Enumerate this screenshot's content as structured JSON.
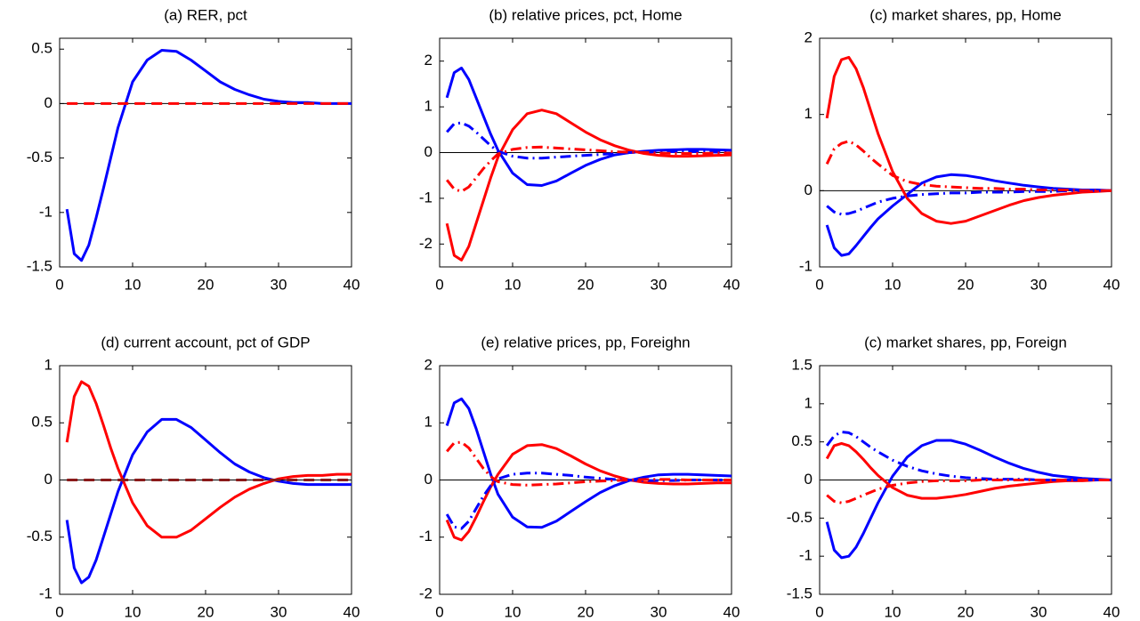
{
  "chart_data": [
    {
      "type": "line",
      "title": "(a) RER, pct",
      "zero_line": true,
      "x": [
        1,
        2,
        3,
        4,
        5,
        6,
        7,
        8,
        10,
        12,
        14,
        16,
        18,
        20,
        22,
        24,
        26,
        28,
        30,
        32,
        34,
        36,
        38,
        40
      ],
      "xlim": [
        0,
        40
      ],
      "xticks": [
        0,
        10,
        20,
        30,
        40
      ],
      "ylim": [
        -1.5,
        0.6
      ],
      "yticks": [
        -1.5,
        -1,
        -0.5,
        0,
        0.5
      ],
      "series": [
        {
          "color": "#0000ff",
          "style": "solid",
          "values": [
            -0.97,
            -1.38,
            -1.44,
            -1.3,
            -1.05,
            -0.78,
            -0.5,
            -0.22,
            0.2,
            0.4,
            0.49,
            0.48,
            0.4,
            0.3,
            0.2,
            0.13,
            0.08,
            0.04,
            0.02,
            0.01,
            0.01,
            0,
            0,
            0
          ]
        },
        {
          "color": "#ff0000",
          "style": "dashed",
          "values": [
            0,
            0,
            0,
            0,
            0,
            0,
            0,
            0,
            0,
            0,
            0,
            0,
            0,
            0,
            0,
            0,
            0,
            0,
            0,
            0,
            0,
            0,
            0,
            0
          ]
        }
      ]
    },
    {
      "type": "line",
      "title": "(b) relative prices, pct, Home",
      "zero_line": true,
      "x": [
        1,
        2,
        3,
        4,
        5,
        6,
        7,
        8,
        10,
        12,
        14,
        16,
        18,
        20,
        22,
        24,
        26,
        28,
        30,
        32,
        34,
        36,
        38,
        40
      ],
      "xlim": [
        0,
        40
      ],
      "xticks": [
        0,
        10,
        20,
        30,
        40
      ],
      "ylim": [
        -2.5,
        2.5
      ],
      "yticks": [
        -2,
        -1,
        0,
        1,
        2
      ],
      "series": [
        {
          "color": "#0000ff",
          "style": "solid",
          "values": [
            1.2,
            1.75,
            1.85,
            1.6,
            1.2,
            0.8,
            0.4,
            0.05,
            -0.45,
            -0.7,
            -0.72,
            -0.62,
            -0.45,
            -0.28,
            -0.15,
            -0.05,
            0,
            0.03,
            0.05,
            0.06,
            0.07,
            0.07,
            0.06,
            0.05
          ]
        },
        {
          "color": "#ff0000",
          "style": "solid",
          "values": [
            -1.55,
            -2.25,
            -2.35,
            -2.05,
            -1.55,
            -1.05,
            -0.55,
            -0.1,
            0.5,
            0.85,
            0.93,
            0.85,
            0.65,
            0.45,
            0.28,
            0.15,
            0.05,
            -0.02,
            -0.06,
            -0.08,
            -0.08,
            -0.07,
            -0.06,
            -0.05
          ]
        },
        {
          "color": "#0000ff",
          "style": "dashdot",
          "values": [
            0.45,
            0.63,
            0.65,
            0.58,
            0.45,
            0.3,
            0.15,
            0.03,
            -0.08,
            -0.12,
            -0.12,
            -0.1,
            -0.08,
            -0.06,
            -0.04,
            -0.02,
            0,
            0.01,
            0.02,
            0.02,
            0.02,
            0.02,
            0.01,
            0.01
          ]
        },
        {
          "color": "#ff0000",
          "style": "dashdot",
          "values": [
            -0.6,
            -0.8,
            -0.85,
            -0.75,
            -0.55,
            -0.35,
            -0.18,
            -0.03,
            0.07,
            0.11,
            0.12,
            0.1,
            0.08,
            0.06,
            0.04,
            0.02,
            0.01,
            0,
            -0.01,
            -0.02,
            -0.02,
            -0.02,
            -0.01,
            -0.01
          ]
        }
      ]
    },
    {
      "type": "line",
      "title": "(c) market shares, pp, Home",
      "zero_line": true,
      "x": [
        1,
        2,
        3,
        4,
        5,
        6,
        7,
        8,
        10,
        12,
        14,
        16,
        18,
        20,
        22,
        24,
        26,
        28,
        30,
        32,
        34,
        36,
        38,
        40
      ],
      "xlim": [
        0,
        40
      ],
      "xticks": [
        0,
        10,
        20,
        30,
        40
      ],
      "ylim": [
        -1,
        2
      ],
      "yticks": [
        -1,
        0,
        1,
        2
      ],
      "series": [
        {
          "color": "#0000ff",
          "style": "solid",
          "values": [
            -0.45,
            -0.75,
            -0.85,
            -0.83,
            -0.72,
            -0.6,
            -0.48,
            -0.37,
            -0.2,
            -0.05,
            0.1,
            0.18,
            0.21,
            0.2,
            0.17,
            0.13,
            0.1,
            0.07,
            0.05,
            0.03,
            0.02,
            0.01,
            0.01,
            0
          ]
        },
        {
          "color": "#ff0000",
          "style": "solid",
          "values": [
            0.95,
            1.5,
            1.72,
            1.75,
            1.6,
            1.35,
            1.05,
            0.75,
            0.25,
            -0.1,
            -0.3,
            -0.4,
            -0.43,
            -0.4,
            -0.33,
            -0.26,
            -0.19,
            -0.13,
            -0.09,
            -0.06,
            -0.04,
            -0.02,
            -0.01,
            0
          ]
        },
        {
          "color": "#0000ff",
          "style": "dashdot",
          "values": [
            -0.2,
            -0.28,
            -0.31,
            -0.3,
            -0.27,
            -0.23,
            -0.19,
            -0.15,
            -0.1,
            -0.07,
            -0.05,
            -0.04,
            -0.03,
            -0.03,
            -0.02,
            -0.02,
            -0.02,
            -0.01,
            -0.01,
            -0.01,
            0,
            0,
            0,
            0
          ]
        },
        {
          "color": "#ff0000",
          "style": "dashdot",
          "values": [
            0.35,
            0.55,
            0.62,
            0.65,
            0.6,
            0.52,
            0.43,
            0.35,
            0.2,
            0.12,
            0.08,
            0.06,
            0.05,
            0.04,
            0.03,
            0.03,
            0.02,
            0.02,
            0.01,
            0.01,
            0.01,
            0,
            0,
            0
          ]
        }
      ]
    },
    {
      "type": "line",
      "title": "(d) current account, pct of GDP",
      "zero_line": true,
      "x": [
        1,
        2,
        3,
        4,
        5,
        6,
        7,
        8,
        10,
        12,
        14,
        16,
        18,
        20,
        22,
        24,
        26,
        28,
        30,
        32,
        34,
        36,
        38,
        40
      ],
      "xlim": [
        0,
        40
      ],
      "xticks": [
        0,
        10,
        20,
        30,
        40
      ],
      "ylim": [
        -1,
        1
      ],
      "yticks": [
        -1,
        -0.5,
        0,
        0.5,
        1
      ],
      "series": [
        {
          "color": "#0000ff",
          "style": "solid",
          "values": [
            -0.35,
            -0.77,
            -0.9,
            -0.85,
            -0.7,
            -0.5,
            -0.3,
            -0.1,
            0.22,
            0.42,
            0.53,
            0.53,
            0.46,
            0.35,
            0.24,
            0.14,
            0.07,
            0.02,
            -0.01,
            -0.03,
            -0.04,
            -0.04,
            -0.04,
            -0.04
          ]
        },
        {
          "color": "#ff0000",
          "style": "solid",
          "values": [
            0.33,
            0.73,
            0.86,
            0.82,
            0.67,
            0.48,
            0.28,
            0.1,
            -0.2,
            -0.4,
            -0.5,
            -0.5,
            -0.44,
            -0.34,
            -0.24,
            -0.15,
            -0.08,
            -0.03,
            0.01,
            0.03,
            0.04,
            0.04,
            0.05,
            0.05
          ]
        },
        {
          "color": "#8b1a1a",
          "style": "dashed",
          "values": [
            0,
            0,
            0,
            0,
            0,
            0,
            0,
            0,
            0,
            0,
            0,
            0,
            0,
            0,
            0,
            0,
            0,
            0,
            0,
            0,
            0,
            0,
            0,
            0
          ]
        }
      ]
    },
    {
      "type": "line",
      "title": "(e) relative prices, pp, Foreighn",
      "zero_line": true,
      "x": [
        1,
        2,
        3,
        4,
        5,
        6,
        7,
        8,
        10,
        12,
        14,
        16,
        18,
        20,
        22,
        24,
        26,
        28,
        30,
        32,
        34,
        36,
        38,
        40
      ],
      "xlim": [
        0,
        40
      ],
      "xticks": [
        0,
        10,
        20,
        30,
        40
      ],
      "ylim": [
        -2,
        2
      ],
      "yticks": [
        -2,
        -1,
        0,
        1,
        2
      ],
      "series": [
        {
          "color": "#0000ff",
          "style": "solid",
          "values": [
            0.95,
            1.35,
            1.42,
            1.25,
            0.9,
            0.5,
            0.1,
            -0.25,
            -0.65,
            -0.82,
            -0.83,
            -0.72,
            -0.55,
            -0.38,
            -0.22,
            -0.1,
            -0.01,
            0.05,
            0.09,
            0.1,
            0.1,
            0.09,
            0.08,
            0.07
          ]
        },
        {
          "color": "#ff0000",
          "style": "solid",
          "values": [
            -0.7,
            -1,
            -1.05,
            -0.9,
            -0.65,
            -0.38,
            -0.12,
            0.1,
            0.45,
            0.6,
            0.62,
            0.55,
            0.42,
            0.28,
            0.16,
            0.07,
            0,
            -0.04,
            -0.06,
            -0.07,
            -0.07,
            -0.06,
            -0.05,
            -0.05
          ]
        },
        {
          "color": "#0000ff",
          "style": "dashdot",
          "values": [
            -0.6,
            -0.82,
            -0.85,
            -0.72,
            -0.5,
            -0.28,
            -0.1,
            0.02,
            0.1,
            0.12,
            0.12,
            0.1,
            0.08,
            0.05,
            0.03,
            0.01,
            0,
            -0.01,
            -0.01,
            -0.01,
            0,
            0,
            0,
            0
          ]
        },
        {
          "color": "#ff0000",
          "style": "dashdot",
          "values": [
            0.5,
            0.65,
            0.66,
            0.56,
            0.38,
            0.2,
            0.06,
            -0.03,
            -0.08,
            -0.09,
            -0.08,
            -0.07,
            -0.05,
            -0.03,
            -0.02,
            -0.01,
            0,
            0.01,
            0.01,
            0.01,
            0,
            0,
            0,
            0
          ]
        }
      ]
    },
    {
      "type": "line",
      "title": "(c) market shares, pp, Foreign",
      "zero_line": true,
      "x": [
        1,
        2,
        3,
        4,
        5,
        6,
        7,
        8,
        10,
        12,
        14,
        16,
        18,
        20,
        22,
        24,
        26,
        28,
        30,
        32,
        34,
        36,
        38,
        40
      ],
      "xlim": [
        0,
        40
      ],
      "xticks": [
        0,
        10,
        20,
        30,
        40
      ],
      "ylim": [
        -1.5,
        1.5
      ],
      "yticks": [
        -1.5,
        -1,
        -0.5,
        0,
        0.5,
        1,
        1.5
      ],
      "series": [
        {
          "color": "#0000ff",
          "style": "solid",
          "values": [
            -0.55,
            -0.92,
            -1.02,
            -1,
            -0.88,
            -0.7,
            -0.5,
            -0.3,
            0.05,
            0.3,
            0.45,
            0.52,
            0.52,
            0.47,
            0.39,
            0.3,
            0.22,
            0.15,
            0.1,
            0.06,
            0.04,
            0.02,
            0.01,
            0
          ]
        },
        {
          "color": "#ff0000",
          "style": "solid",
          "values": [
            0.28,
            0.45,
            0.48,
            0.45,
            0.37,
            0.27,
            0.16,
            0.06,
            -0.1,
            -0.2,
            -0.24,
            -0.24,
            -0.22,
            -0.19,
            -0.15,
            -0.11,
            -0.08,
            -0.06,
            -0.04,
            -0.02,
            -0.01,
            -0.01,
            0,
            0
          ]
        },
        {
          "color": "#0000ff",
          "style": "dashdot",
          "values": [
            0.45,
            0.58,
            0.63,
            0.62,
            0.57,
            0.5,
            0.43,
            0.37,
            0.26,
            0.18,
            0.12,
            0.08,
            0.05,
            0.03,
            0.02,
            0.01,
            0.01,
            0.01,
            0,
            0,
            0,
            0,
            0,
            0
          ]
        },
        {
          "color": "#ff0000",
          "style": "dashdot",
          "values": [
            -0.2,
            -0.28,
            -0.3,
            -0.28,
            -0.24,
            -0.2,
            -0.16,
            -0.12,
            -0.07,
            -0.04,
            -0.02,
            -0.01,
            -0.01,
            -0.01,
            0,
            0,
            0,
            0,
            0,
            0,
            0,
            0,
            0,
            0
          ]
        }
      ]
    }
  ]
}
